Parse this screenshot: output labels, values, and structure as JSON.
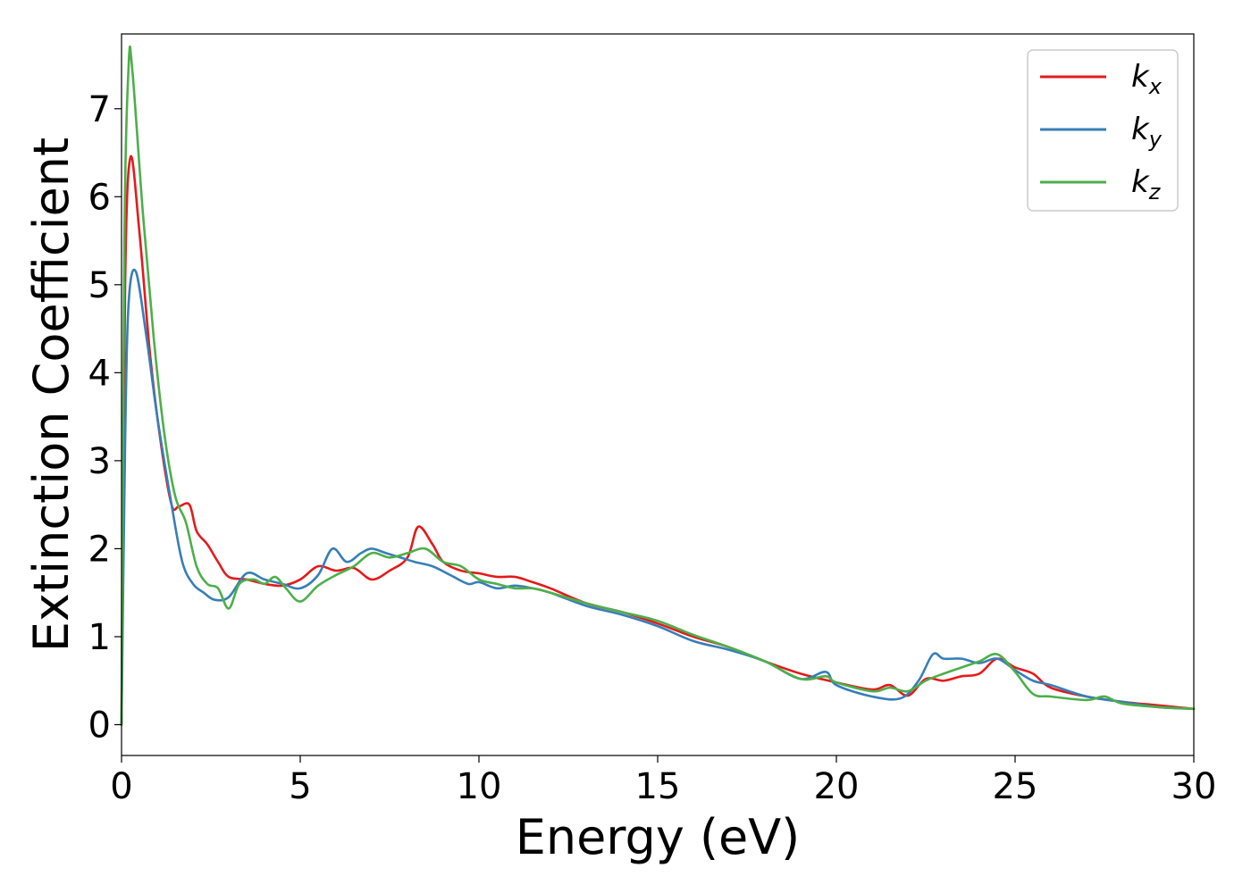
{
  "chart_data": {
    "type": "line",
    "title": "",
    "xlabel": "Energy (eV)",
    "ylabel": "Extinction Coefficient",
    "xlim": [
      0,
      30
    ],
    "ylim": [
      -0.35,
      7.85
    ],
    "xticks": [
      "0",
      "5",
      "10",
      "15",
      "20",
      "25",
      "30"
    ],
    "yticks": [
      "0",
      "1",
      "2",
      "3",
      "4",
      "5",
      "6",
      "7"
    ],
    "grid": false,
    "legend_position": "top-right",
    "series": [
      {
        "name": "k",
        "subscript": "x",
        "color": "#e41a1c",
        "x": [
          0,
          0.1,
          0.25,
          0.5,
          0.8,
          1.1,
          1.4,
          1.6,
          1.9,
          2.1,
          2.4,
          2.7,
          3.0,
          3.5,
          4.0,
          4.5,
          5.0,
          5.5,
          6.0,
          6.5,
          7.0,
          7.5,
          8.0,
          8.3,
          8.7,
          9.0,
          9.5,
          10.0,
          10.5,
          11.0,
          11.5,
          12.0,
          13.0,
          14.0,
          15.0,
          16.0,
          17.0,
          18.0,
          19.0,
          20.0,
          21.0,
          21.5,
          22.0,
          22.5,
          23.0,
          23.5,
          24.0,
          24.5,
          25.0,
          25.5,
          26.0,
          27.0,
          28.0,
          29.0,
          30.0
        ],
        "y": [
          0.0,
          5.0,
          6.45,
          5.6,
          4.2,
          3.2,
          2.5,
          2.48,
          2.5,
          2.2,
          2.05,
          1.85,
          1.68,
          1.65,
          1.6,
          1.58,
          1.65,
          1.8,
          1.75,
          1.78,
          1.65,
          1.75,
          1.9,
          2.25,
          2.05,
          1.85,
          1.75,
          1.72,
          1.68,
          1.68,
          1.62,
          1.55,
          1.38,
          1.28,
          1.15,
          1.0,
          0.88,
          0.72,
          0.58,
          0.48,
          0.4,
          0.45,
          0.33,
          0.52,
          0.5,
          0.55,
          0.58,
          0.75,
          0.65,
          0.58,
          0.42,
          0.32,
          0.26,
          0.22,
          0.18
        ]
      },
      {
        "name": "k",
        "subscript": "y",
        "color": "#377eb8",
        "x": [
          0,
          0.1,
          0.2,
          0.4,
          0.7,
          1.0,
          1.4,
          1.7,
          2.0,
          2.3,
          2.6,
          3.0,
          3.5,
          4.0,
          4.5,
          5.0,
          5.5,
          5.9,
          6.3,
          6.7,
          7.0,
          7.4,
          7.8,
          8.2,
          8.7,
          9.2,
          9.7,
          10.0,
          10.5,
          11.0,
          11.5,
          12.0,
          13.0,
          14.0,
          15.0,
          16.0,
          17.0,
          18.0,
          19.0,
          19.7,
          20.0,
          21.0,
          21.8,
          22.3,
          22.7,
          23.0,
          23.5,
          24.0,
          24.5,
          25.0,
          25.5,
          26.0,
          27.0,
          28.0,
          29.0,
          30.0
        ],
        "y": [
          0.0,
          3.2,
          4.8,
          5.15,
          4.4,
          3.5,
          2.5,
          1.85,
          1.6,
          1.5,
          1.42,
          1.45,
          1.72,
          1.65,
          1.6,
          1.55,
          1.7,
          2.0,
          1.85,
          1.95,
          2.0,
          1.95,
          1.9,
          1.85,
          1.8,
          1.7,
          1.6,
          1.62,
          1.55,
          1.58,
          1.55,
          1.5,
          1.35,
          1.25,
          1.12,
          0.95,
          0.85,
          0.72,
          0.52,
          0.6,
          0.45,
          0.32,
          0.3,
          0.5,
          0.8,
          0.75,
          0.75,
          0.7,
          0.75,
          0.62,
          0.5,
          0.45,
          0.32,
          0.26,
          0.2,
          0.18
        ]
      },
      {
        "name": "k",
        "subscript": "z",
        "color": "#4daf4a",
        "x": [
          0,
          0.08,
          0.2,
          0.3,
          0.6,
          0.9,
          1.2,
          1.5,
          1.8,
          2.1,
          2.4,
          2.7,
          3.0,
          3.3,
          3.7,
          4.0,
          4.3,
          4.6,
          5.0,
          5.5,
          6.0,
          6.5,
          7.0,
          7.5,
          8.0,
          8.5,
          9.0,
          9.5,
          10.0,
          10.5,
          11.0,
          11.5,
          12.0,
          13.0,
          14.0,
          15.0,
          16.0,
          17.0,
          18.0,
          19.0,
          19.7,
          20.0,
          21.0,
          21.5,
          22.0,
          22.5,
          23.0,
          23.5,
          24.0,
          24.5,
          25.0,
          25.5,
          26.0,
          27.0,
          27.5,
          28.0,
          29.0,
          30.0
        ],
        "y": [
          0.0,
          5.5,
          7.5,
          7.45,
          5.8,
          4.4,
          3.3,
          2.6,
          2.3,
          1.8,
          1.6,
          1.55,
          1.32,
          1.6,
          1.65,
          1.6,
          1.68,
          1.55,
          1.4,
          1.58,
          1.7,
          1.8,
          1.95,
          1.9,
          1.95,
          2.0,
          1.85,
          1.8,
          1.65,
          1.6,
          1.55,
          1.55,
          1.5,
          1.38,
          1.28,
          1.18,
          1.02,
          0.88,
          0.72,
          0.52,
          0.55,
          0.48,
          0.38,
          0.42,
          0.38,
          0.5,
          0.58,
          0.65,
          0.72,
          0.8,
          0.6,
          0.35,
          0.32,
          0.28,
          0.32,
          0.24,
          0.2,
          0.18
        ]
      }
    ]
  }
}
